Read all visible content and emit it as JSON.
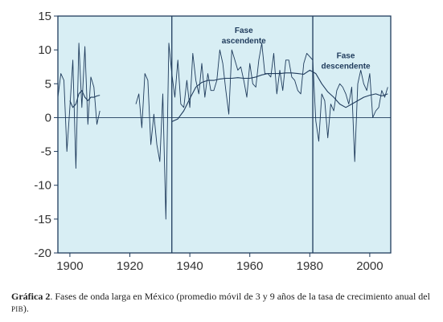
{
  "chart_data": {
    "type": "line",
    "title": "",
    "xlabel": "",
    "ylabel": "",
    "xlim": [
      1896,
      2007
    ],
    "ylim": [
      -20,
      15
    ],
    "x_ticks": [
      1900,
      1920,
      1940,
      1960,
      1980,
      2000
    ],
    "y_ticks": [
      15,
      10,
      5,
      0,
      -5,
      -10,
      -15,
      -20
    ],
    "grid": false,
    "legend": "none",
    "colors": {
      "background": "#d8eef4",
      "line": "#1f3b5c",
      "frame": "#1f3b5c"
    },
    "vertical_lines": [
      1934,
      1981
    ],
    "annotations": [
      {
        "lines": [
          "Fase",
          "ascendente"
        ],
        "x": 1958,
        "y": 12.5
      },
      {
        "lines": [
          "Fase",
          "descendente"
        ],
        "x": 1992,
        "y": 8.8
      }
    ],
    "series": [
      {
        "x": [
          1896,
          1897,
          1898,
          1899,
          1900,
          1901,
          1902,
          1903,
          1904,
          1905,
          1906,
          1907,
          1908,
          1909,
          1910,
          1922,
          1923,
          1924,
          1925,
          1926,
          1927,
          1928,
          1929,
          1930,
          1931,
          1932,
          1933,
          1934,
          1935,
          1936,
          1937,
          1938,
          1939,
          1940,
          1941,
          1942,
          1943,
          1944,
          1945,
          1946,
          1947,
          1948,
          1949,
          1950,
          1951,
          1952,
          1953,
          1954,
          1955,
          1956,
          1957,
          1958,
          1959,
          1960,
          1961,
          1962,
          1963,
          1964,
          1965,
          1966,
          1967,
          1968,
          1969,
          1970,
          1971,
          1972,
          1973,
          1974,
          1975,
          1976,
          1977,
          1978,
          1979,
          1980,
          1981,
          1982,
          1983,
          1984,
          1985,
          1986,
          1987,
          1988,
          1989,
          1990,
          1991,
          1992,
          1993,
          1994,
          1995,
          1996,
          1997,
          1998,
          1999,
          2000,
          2001,
          2002,
          2003,
          2004,
          2005,
          2006
        ],
        "values": [
          3.0,
          6.5,
          5.5,
          -5.0,
          1.5,
          8.5,
          -7.5,
          11.0,
          1.5,
          10.5,
          -1.0,
          6.0,
          4.5,
          -1.0,
          1.0,
          2.0,
          3.5,
          -1.5,
          6.5,
          5.5,
          -4.0,
          0.5,
          -4.0,
          -6.5,
          3.5,
          -15.0,
          11.0,
          6.5,
          3.0,
          8.5,
          2.0,
          1.5,
          5.5,
          1.5,
          9.5,
          5.5,
          3.5,
          8.0,
          3.0,
          6.5,
          4.0,
          4.0,
          5.5,
          10.0,
          8.0,
          4.0,
          0.5,
          10.0,
          8.5,
          7.0,
          7.5,
          5.5,
          3.0,
          8.0,
          5.0,
          4.5,
          8.5,
          11.0,
          6.5,
          6.5,
          6.0,
          9.5,
          3.5,
          7.0,
          4.0,
          8.5,
          8.5,
          6.0,
          5.5,
          4.0,
          3.5,
          8.0,
          9.5,
          9.0,
          8.5,
          -0.5,
          -3.5,
          3.5,
          2.5,
          -3.0,
          2.0,
          1.0,
          4.0,
          5.0,
          4.5,
          3.5,
          2.0,
          4.5,
          -6.5,
          5.0,
          7.0,
          5.0,
          4.0,
          6.5,
          0.0,
          1.0,
          1.5,
          4.0,
          3.0,
          4.5
        ]
      },
      {
        "x": [
          1900,
          1901,
          1902,
          1903,
          1904,
          1905,
          1906,
          1907,
          1908,
          1909,
          1910,
          1934,
          1936,
          1938,
          1940,
          1942,
          1944,
          1946,
          1948,
          1950,
          1952,
          1954,
          1956,
          1958,
          1960,
          1962,
          1964,
          1966,
          1968,
          1970,
          1972,
          1974,
          1976,
          1978,
          1980,
          1982,
          1984,
          1986,
          1988,
          1990,
          1992,
          1994,
          1996,
          1998,
          2000,
          2002,
          2004,
          2006
        ],
        "values": [
          2.5,
          1.5,
          2.0,
          3.5,
          4.0,
          3.0,
          2.5,
          3.0,
          3.0,
          3.2,
          3.3,
          -0.6,
          -0.2,
          1.0,
          2.8,
          4.5,
          5.2,
          5.5,
          5.5,
          5.7,
          5.8,
          5.8,
          5.9,
          5.8,
          5.8,
          6.0,
          6.3,
          6.5,
          6.5,
          6.5,
          6.6,
          6.6,
          6.5,
          6.4,
          7.0,
          6.5,
          5.0,
          3.8,
          3.0,
          2.0,
          1.5,
          2.0,
          2.5,
          3.0,
          3.3,
          3.5,
          3.2,
          3.5
        ]
      }
    ]
  },
  "caption": {
    "label": "Gráfica 2",
    "text_before_acronym": ". Fases de onda larga en México (promedio móvil de 3 y 9 años de la tasa de crecimiento anual del ",
    "acronym": "PIB",
    "text_after_acronym": ")."
  }
}
